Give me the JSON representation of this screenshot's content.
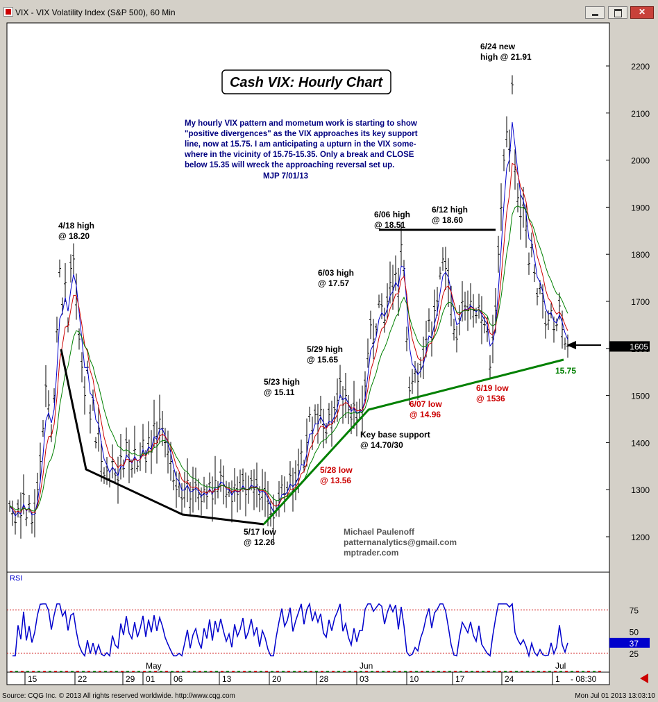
{
  "window": {
    "title": "VIX - VIX Volatility Index (S&P 500), 60 Min"
  },
  "chart_data": {
    "type": "line",
    "title": "Cash VIX: Hourly Chart",
    "commentary": [
      "My hourly VIX pattern and mometum work is starting to show",
      "\"positive divergences\" as the VIX approaches its key support",
      "line, now at 15.75. I am anticipating a upturn in the VIX some-",
      "where in the vicinity of 15.75-15.35.  Only a break and CLOSE",
      "below 15.35 will wreck the approaching reversal set up.",
      "MJP  7/01/13"
    ],
    "y_ticks": [
      "2200",
      "2100",
      "2000",
      "1900",
      "1800",
      "1700",
      "1600",
      "1500",
      "1400",
      "1300",
      "1200"
    ],
    "ylim": [
      1080,
      2290
    ],
    "last_value": "1605",
    "x_ticks": [
      "15",
      "22",
      "29",
      "01",
      "06",
      "13",
      "20",
      "28",
      "03",
      "10",
      "17",
      "24",
      "1"
    ],
    "month_labels": [
      "May",
      "Jun",
      "Jul"
    ],
    "time_label": "08:30",
    "rsi": {
      "label": "RSI",
      "ticks": [
        "75",
        "50",
        "25"
      ],
      "last": "37",
      "ylim": [
        12,
        92
      ]
    },
    "series": [
      {
        "values": [
          [
            0,
            1265
          ],
          [
            4,
            1250
          ],
          [
            8,
            1230
          ],
          [
            12,
            1260
          ],
          [
            16,
            1245
          ],
          [
            20,
            1290
          ],
          [
            24,
            1240
          ],
          [
            28,
            1270
          ],
          [
            32,
            1230
          ],
          [
            36,
            1250
          ],
          [
            40,
            1300
          ],
          [
            44,
            1360
          ],
          [
            48,
            1430
          ],
          [
            52,
            1520
          ],
          [
            56,
            1480
          ],
          [
            60,
            1420
          ],
          [
            64,
            1500
          ],
          [
            68,
            1640
          ],
          [
            72,
            1770
          ],
          [
            76,
            1690
          ],
          [
            80,
            1740
          ],
          [
            84,
            1650
          ],
          [
            88,
            1770
          ],
          [
            92,
            1790
          ],
          [
            96,
            1710
          ],
          [
            100,
            1620
          ],
          [
            104,
            1560
          ],
          [
            108,
            1500
          ],
          [
            112,
            1560
          ],
          [
            116,
            1450
          ],
          [
            120,
            1490
          ],
          [
            124,
            1400
          ],
          [
            128,
            1430
          ],
          [
            132,
            1360
          ],
          [
            136,
            1330
          ],
          [
            140,
            1340
          ],
          [
            144,
            1320
          ],
          [
            148,
            1360
          ],
          [
            152,
            1330
          ],
          [
            156,
            1320
          ],
          [
            160,
            1370
          ],
          [
            164,
            1345
          ],
          [
            168,
            1400
          ],
          [
            172,
            1360
          ],
          [
            176,
            1345
          ],
          [
            180,
            1385
          ],
          [
            184,
            1350
          ],
          [
            188,
            1370
          ],
          [
            192,
            1405
          ],
          [
            196,
            1360
          ],
          [
            200,
            1410
          ],
          [
            204,
            1380
          ],
          [
            208,
            1440
          ],
          [
            212,
            1400
          ],
          [
            216,
            1450
          ],
          [
            220,
            1430
          ],
          [
            224,
            1400
          ],
          [
            228,
            1380
          ],
          [
            232,
            1360
          ],
          [
            236,
            1320
          ],
          [
            240,
            1300
          ],
          [
            244,
            1310
          ],
          [
            248,
            1280
          ],
          [
            252,
            1300
          ],
          [
            256,
            1320
          ],
          [
            260,
            1280
          ],
          [
            264,
            1300
          ],
          [
            268,
            1310
          ],
          [
            272,
            1290
          ],
          [
            276,
            1275
          ],
          [
            280,
            1300
          ],
          [
            284,
            1285
          ],
          [
            288,
            1315
          ],
          [
            292,
            1280
          ],
          [
            296,
            1320
          ],
          [
            300,
            1300
          ],
          [
            304,
            1330
          ],
          [
            308,
            1310
          ],
          [
            312,
            1290
          ],
          [
            316,
            1300
          ],
          [
            320,
            1275
          ],
          [
            324,
            1310
          ],
          [
            328,
            1290
          ],
          [
            332,
            1300
          ],
          [
            336,
            1320
          ],
          [
            340,
            1290
          ],
          [
            344,
            1300
          ],
          [
            348,
            1320
          ],
          [
            352,
            1300
          ],
          [
            356,
            1310
          ],
          [
            360,
            1280
          ],
          [
            364,
            1300
          ],
          [
            368,
            1290
          ],
          [
            372,
            1270
          ],
          [
            376,
            1250
          ],
          [
            380,
            1240
          ],
          [
            384,
            1260
          ],
          [
            388,
            1280
          ],
          [
            392,
            1310
          ],
          [
            396,
            1290
          ],
          [
            400,
            1300
          ],
          [
            404,
            1330
          ],
          [
            408,
            1300
          ],
          [
            412,
            1320
          ],
          [
            416,
            1340
          ],
          [
            420,
            1380
          ],
          [
            424,
            1350
          ],
          [
            428,
            1400
          ],
          [
            432,
            1460
          ],
          [
            436,
            1420
          ],
          [
            440,
            1460
          ],
          [
            444,
            1440
          ],
          [
            448,
            1470
          ],
          [
            452,
            1430
          ],
          [
            456,
            1420
          ],
          [
            460,
            1460
          ],
          [
            464,
            1440
          ],
          [
            468,
            1470
          ],
          [
            472,
            1490
          ],
          [
            476,
            1530
          ],
          [
            480,
            1480
          ],
          [
            484,
            1500
          ],
          [
            488,
            1470
          ],
          [
            492,
            1450
          ],
          [
            496,
            1480
          ],
          [
            500,
            1450
          ],
          [
            504,
            1470
          ],
          [
            508,
            1470
          ],
          [
            512,
            1520
          ],
          [
            516,
            1590
          ],
          [
            520,
            1650
          ],
          [
            524,
            1620
          ],
          [
            528,
            1640
          ],
          [
            532,
            1700
          ],
          [
            536,
            1690
          ],
          [
            540,
            1660
          ],
          [
            544,
            1700
          ],
          [
            548,
            1740
          ],
          [
            552,
            1730
          ],
          [
            556,
            1760
          ],
          [
            560,
            1720
          ],
          [
            564,
            1820
          ],
          [
            568,
            1770
          ],
          [
            572,
            1620
          ],
          [
            576,
            1510
          ],
          [
            580,
            1530
          ],
          [
            584,
            1550
          ],
          [
            588,
            1530
          ],
          [
            592,
            1560
          ],
          [
            596,
            1580
          ],
          [
            600,
            1620
          ],
          [
            604,
            1660
          ],
          [
            608,
            1620
          ],
          [
            612,
            1680
          ],
          [
            616,
            1700
          ],
          [
            620,
            1760
          ],
          [
            624,
            1790
          ],
          [
            628,
            1770
          ],
          [
            632,
            1740
          ],
          [
            636,
            1690
          ],
          [
            640,
            1640
          ],
          [
            644,
            1620
          ],
          [
            648,
            1660
          ],
          [
            652,
            1700
          ],
          [
            656,
            1690
          ],
          [
            660,
            1680
          ],
          [
            664,
            1700
          ],
          [
            668,
            1680
          ],
          [
            672,
            1670
          ],
          [
            676,
            1690
          ],
          [
            680,
            1660
          ],
          [
            684,
            1650
          ],
          [
            688,
            1640
          ],
          [
            692,
            1560
          ],
          [
            696,
            1620
          ],
          [
            700,
            1680
          ],
          [
            704,
            1800
          ],
          [
            708,
            1900
          ],
          [
            712,
            2000
          ],
          [
            716,
            2060
          ],
          [
            720,
            2020
          ],
          [
            724,
            2160
          ],
          [
            728,
            1980
          ],
          [
            732,
            1920
          ],
          [
            736,
            1880
          ],
          [
            740,
            1900
          ],
          [
            744,
            1860
          ],
          [
            748,
            1780
          ],
          [
            752,
            1820
          ],
          [
            756,
            1760
          ],
          [
            760,
            1710
          ],
          [
            764,
            1730
          ],
          [
            768,
            1700
          ],
          [
            772,
            1650
          ],
          [
            776,
            1660
          ],
          [
            780,
            1680
          ],
          [
            784,
            1640
          ],
          [
            788,
            1650
          ],
          [
            792,
            1690
          ],
          [
            796,
            1640
          ],
          [
            800,
            1610
          ],
          [
            804,
            1605
          ]
        ]
      }
    ],
    "annotations": [
      {
        "lines": [
          "4/18 high",
          "@ 18.20"
        ],
        "color": "#000000"
      },
      {
        "lines": [
          "6/06 high",
          "@ 18.51"
        ],
        "color": "#000000"
      },
      {
        "lines": [
          "6/12 high",
          "@ 18.60"
        ],
        "color": "#000000"
      },
      {
        "lines": [
          "6/24 new",
          "high @ 21.91"
        ],
        "color": "#000000"
      },
      {
        "lines": [
          "6/03 high",
          "@ 17.57"
        ],
        "color": "#000000"
      },
      {
        "lines": [
          "5/29 high",
          "@ 15.65"
        ],
        "color": "#000000"
      },
      {
        "lines": [
          "5/23 high",
          "@ 15.11"
        ],
        "color": "#000000"
      },
      {
        "lines": [
          "Key base support",
          "@ 14.70/30"
        ],
        "color": "#000000"
      },
      {
        "lines": [
          "5/28 low",
          "@ 13.56"
        ],
        "color": "#cc0000"
      },
      {
        "lines": [
          "6/07 low",
          "@ 14.96"
        ],
        "color": "#cc0000"
      },
      {
        "lines": [
          "6/19 low",
          "@ 1536"
        ],
        "color": "#cc0000"
      },
      {
        "lines": [
          "5/17 low",
          "@ 12.26"
        ],
        "color": "#000000"
      },
      {
        "lines": [
          "15.75"
        ],
        "color": "#008000"
      }
    ],
    "credits": [
      "Michael Paulenoff",
      "patternanalytics@gmail.com",
      "mptrader.com"
    ]
  },
  "footer": {
    "source": "Source: CQG Inc. © 2013 All rights reserved worldwide. http://www.cqg.com",
    "timestamp": "Mon Jul 01 2013 13:03:10"
  }
}
